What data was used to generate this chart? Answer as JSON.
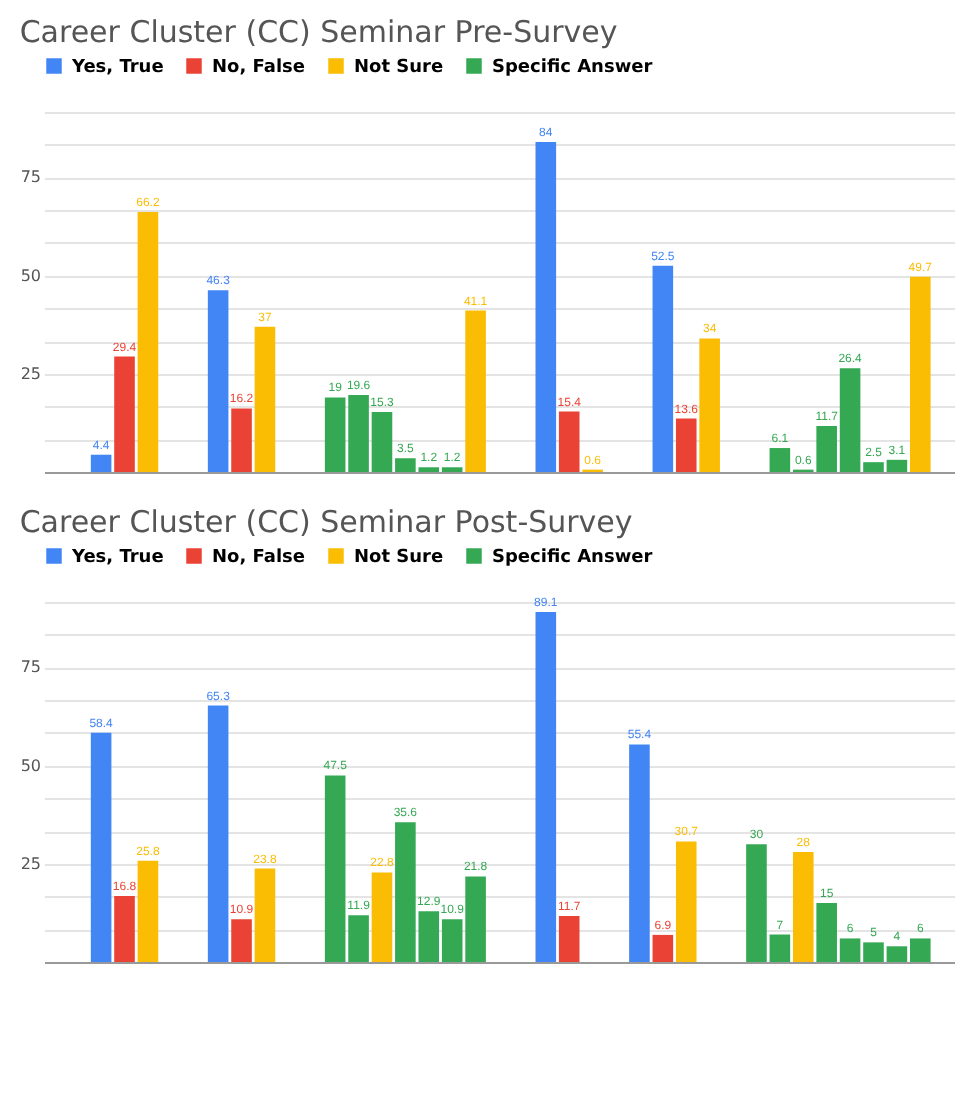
{
  "chart_data": [
    {
      "type": "bar",
      "title": "Career Cluster (CC) Seminar Pre-Survey",
      "data_labels": true,
      "grid": true,
      "legend": "top",
      "tick_labels": "y",
      "categories": [
        null,
        null,
        null,
        null,
        null,
        null,
        null,
        null,
        null,
        null,
        null,
        null,
        null,
        null,
        null,
        null,
        null,
        null,
        null,
        null,
        null,
        null,
        null,
        null,
        null,
        null,
        null,
        null,
        null,
        null,
        null,
        null,
        null,
        null,
        null,
        null,
        null,
        null,
        null
      ],
      "ylim": [
        0,
        91.67
      ],
      "yticks": [
        {
          "value": 8.33,
          "label": null
        },
        {
          "value": 16.67,
          "label": null
        },
        25,
        {
          "value": 33.33,
          "label": null
        },
        {
          "value": 41.67,
          "label": null
        },
        50,
        {
          "value": 58.33,
          "label": null
        },
        {
          "value": 66.67,
          "label": null
        },
        75,
        {
          "value": 83.33,
          "label": null
        },
        {
          "value": 91.67,
          "label": null
        }
      ],
      "series": [
        {
          "name": "Yes, True",
          "color": "#4285f4",
          "values": [
            null,
            null,
            4.4,
            null,
            null,
            null,
            null,
            46.3,
            null,
            null,
            null,
            null,
            null,
            null,
            null,
            null,
            null,
            null,
            null,
            null,
            null,
            84,
            null,
            null,
            null,
            null,
            52.5,
            null,
            null,
            null,
            null,
            null,
            null,
            null,
            null,
            null,
            null,
            null,
            null
          ]
        },
        {
          "name": "No, False",
          "color": "#ea4335",
          "values": [
            null,
            null,
            null,
            29.4,
            null,
            null,
            null,
            null,
            16.2,
            null,
            null,
            null,
            null,
            null,
            null,
            null,
            null,
            null,
            null,
            null,
            null,
            null,
            15.4,
            null,
            null,
            null,
            null,
            13.6,
            null,
            null,
            null,
            null,
            null,
            null,
            null,
            null,
            null,
            null,
            null
          ]
        },
        {
          "name": "Not Sure",
          "color": "#fbbc04",
          "values": [
            null,
            null,
            null,
            null,
            66.2,
            null,
            null,
            null,
            null,
            37,
            null,
            null,
            null,
            null,
            null,
            null,
            null,
            null,
            41.1,
            null,
            null,
            null,
            null,
            0.6,
            null,
            null,
            null,
            null,
            34,
            null,
            null,
            null,
            null,
            null,
            null,
            null,
            null,
            49.7,
            null
          ]
        },
        {
          "name": "Specific Answer",
          "color": "#34a853",
          "values": [
            null,
            null,
            null,
            null,
            null,
            null,
            null,
            null,
            null,
            null,
            null,
            null,
            19,
            19.6,
            15.3,
            3.5,
            1.2,
            1.2,
            null,
            null,
            null,
            null,
            null,
            null,
            null,
            null,
            null,
            null,
            null,
            null,
            null,
            6.1,
            0.6,
            11.7,
            26.4,
            2.5,
            3.1,
            null,
            null
          ]
        }
      ]
    },
    {
      "type": "bar",
      "title": "Career Cluster (CC) Seminar Post-Survey",
      "data_labels": true,
      "grid": true,
      "legend": "top",
      "tick_labels": "y",
      "categories": [
        null,
        null,
        null,
        null,
        null,
        null,
        null,
        null,
        null,
        null,
        null,
        null,
        null,
        null,
        null,
        null,
        null,
        null,
        null,
        null,
        null,
        null,
        null,
        null,
        null,
        null,
        null,
        null,
        null,
        null,
        null,
        null,
        null,
        null,
        null,
        null,
        null,
        null,
        null
      ],
      "ylim": [
        0,
        91.67
      ],
      "yticks": [
        {
          "value": 8.33,
          "label": null
        },
        {
          "value": 16.67,
          "label": null
        },
        25,
        {
          "value": 33.33,
          "label": null
        },
        {
          "value": 41.67,
          "label": null
        },
        50,
        {
          "value": 58.33,
          "label": null
        },
        {
          "value": 66.67,
          "label": null
        },
        75,
        {
          "value": 83.33,
          "label": null
        },
        {
          "value": 91.67,
          "label": null
        }
      ],
      "series": [
        {
          "name": "Yes, True",
          "color": "#4285f4",
          "values": [
            null,
            null,
            58.4,
            null,
            null,
            null,
            null,
            65.3,
            null,
            null,
            null,
            null,
            null,
            null,
            null,
            null,
            null,
            null,
            null,
            null,
            null,
            89.1,
            null,
            null,
            null,
            55.4,
            null,
            null,
            null,
            null,
            null,
            null,
            null,
            null,
            null,
            null,
            null,
            null,
            null
          ]
        },
        {
          "name": "No, False",
          "color": "#ea4335",
          "values": [
            null,
            null,
            null,
            16.8,
            null,
            null,
            null,
            null,
            10.9,
            null,
            null,
            null,
            null,
            null,
            null,
            null,
            null,
            null,
            null,
            null,
            null,
            null,
            11.7,
            null,
            null,
            null,
            6.9,
            null,
            null,
            null,
            null,
            null,
            null,
            null,
            null,
            null,
            null,
            null,
            null
          ]
        },
        {
          "name": "Not Sure",
          "color": "#fbbc04",
          "values": [
            null,
            null,
            null,
            null,
            25.8,
            null,
            null,
            null,
            null,
            23.8,
            null,
            null,
            null,
            null,
            22.8,
            null,
            null,
            null,
            null,
            null,
            null,
            null,
            null,
            null,
            null,
            null,
            null,
            30.7,
            null,
            null,
            null,
            null,
            28,
            null,
            null,
            null,
            null,
            null,
            null
          ]
        },
        {
          "name": "Specific Answer",
          "color": "#34a853",
          "values": [
            null,
            null,
            null,
            null,
            null,
            null,
            null,
            null,
            null,
            null,
            null,
            null,
            47.5,
            11.9,
            null,
            35.6,
            12.9,
            10.9,
            21.8,
            null,
            null,
            null,
            null,
            null,
            null,
            null,
            null,
            null,
            null,
            null,
            30,
            7,
            null,
            15,
            6,
            5,
            4,
            6,
            null
          ]
        }
      ]
    }
  ]
}
